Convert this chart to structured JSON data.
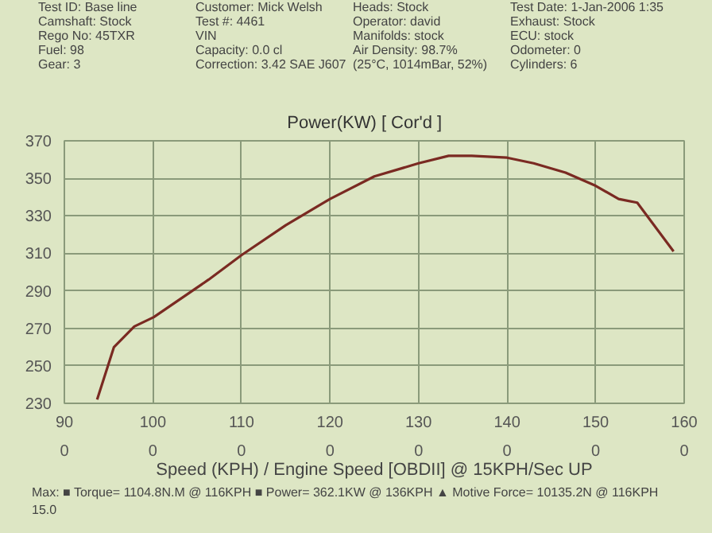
{
  "chart_data": {
    "type": "line",
    "title": "Power(KW)     [ Cor'd ]",
    "xlabel": "Speed (KPH) / Engine Speed [OBDII] @ 15KPH/Sec UP",
    "x": [
      93.7,
      95.6,
      97.9,
      100.1,
      106.3,
      110,
      115,
      120,
      125,
      130,
      133.4,
      136,
      140,
      143,
      146.6,
      150,
      152.6,
      154.7,
      158.8
    ],
    "series": [
      {
        "color": "#7a2a22",
        "values": [
          232,
          260,
          271,
          276,
          296,
          309,
          325,
          339,
          351,
          358,
          362,
          362,
          361,
          358,
          353,
          346,
          339,
          337,
          311
        ]
      }
    ],
    "xlim": [
      90,
      160
    ],
    "ylim": [
      230,
      370
    ],
    "xticks": [
      90,
      100,
      110,
      120,
      130,
      140,
      150,
      160
    ],
    "yticks": [
      230,
      250,
      270,
      290,
      310,
      330,
      350,
      370
    ],
    "grid": true,
    "annotations": [
      "Test ID: Base line",
      "Customer: Mick Welsh",
      "Heads: Stock",
      "Test Date: 1-Jan-2006 1:35",
      "Camshaft: Stock",
      "Test #: 4461",
      "Operator: david",
      "Exhaust: Stock",
      "Rego No: 45TXR",
      "VIN",
      "Manifolds: stock",
      "ECU: stock",
      "Fuel: 98",
      "Capacity: 0.0 cl",
      "Air Density: 98.7%",
      "Odometer: 0",
      "Gear: 3",
      "Correction: 3.42 SAE J607",
      "(25°C, 1014mBar, 52%)",
      "Cylinders: 6",
      "0",
      "0",
      "0",
      "0",
      "0",
      "0",
      "0",
      "0",
      "Max: ■ Torque= 1104.8N.M @ 116KPH ■ Power= 362.1KW @ 136KPH ▲ Motive Force= 10135.2N @ 116KPH",
      "15.0"
    ]
  }
}
